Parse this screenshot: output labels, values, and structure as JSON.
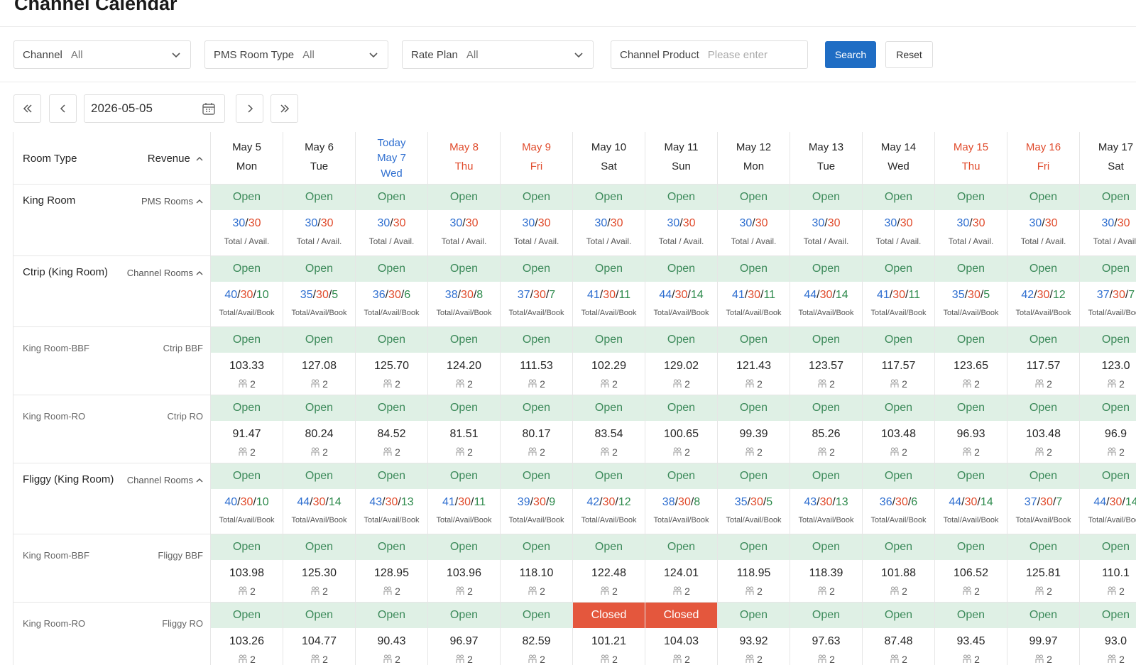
{
  "page_title": "Channel Calendar",
  "filters": {
    "channel_label": "Channel",
    "channel_value": "All",
    "room_type_label": "PMS Room Type",
    "room_type_value": "All",
    "rate_plan_label": "Rate Plan",
    "rate_plan_value": "All",
    "channel_product_label": "Channel Product",
    "channel_product_placeholder": "Please enter",
    "search_label": "Search",
    "reset_label": "Reset"
  },
  "date_nav": {
    "first": "«",
    "prev": "‹",
    "date": "2026-05-05",
    "next": "›",
    "last": "»"
  },
  "table": {
    "room_type_header": "Room Type",
    "revenue_header": "Revenue",
    "columns": [
      {
        "date": "May 5",
        "day": "Mon",
        "color": "#262626"
      },
      {
        "date": "May 6",
        "day": "Tue",
        "color": "#262626"
      },
      {
        "date": "May 7",
        "day": "Wed",
        "today": "Today",
        "color": "#2f6fd0"
      },
      {
        "date": "May 8",
        "day": "Thu",
        "color": "#e04b2c"
      },
      {
        "date": "May 9",
        "day": "Fri",
        "color": "#e04b2c"
      },
      {
        "date": "May 10",
        "day": "Sat",
        "color": "#262626"
      },
      {
        "date": "May 11",
        "day": "Sun",
        "color": "#262626"
      },
      {
        "date": "May 12",
        "day": "Mon",
        "color": "#262626"
      },
      {
        "date": "May 13",
        "day": "Tue",
        "color": "#262626"
      },
      {
        "date": "May 14",
        "day": "Wed",
        "color": "#262626"
      },
      {
        "date": "May 15",
        "day": "Thu",
        "color": "#e04b2c"
      },
      {
        "date": "May 16",
        "day": "Fri",
        "color": "#e04b2c"
      },
      {
        "date": "May 17",
        "day": "Sat",
        "color": "#262626"
      }
    ],
    "rows": [
      {
        "name": "King Room",
        "tag": "PMS Rooms",
        "kind": "pms",
        "sublabel": "Total / Avail.",
        "status": [
          "Open",
          "Open",
          "Open",
          "Open",
          "Open",
          "Open",
          "Open",
          "Open",
          "Open",
          "Open",
          "Open",
          "Open",
          "Open"
        ],
        "values": [
          [
            "30",
            "30"
          ],
          [
            "30",
            "30"
          ],
          [
            "30",
            "30"
          ],
          [
            "30",
            "30"
          ],
          [
            "30",
            "30"
          ],
          [
            "30",
            "30"
          ],
          [
            "30",
            "30"
          ],
          [
            "30",
            "30"
          ],
          [
            "30",
            "30"
          ],
          [
            "30",
            "30"
          ],
          [
            "30",
            "30"
          ],
          [
            "30",
            "30"
          ],
          [
            "30",
            "30"
          ]
        ]
      },
      {
        "name": "Ctrip (King Room)",
        "tag": "Channel Rooms",
        "kind": "channel",
        "sublabel": "Total/Avail/Book",
        "status": [
          "Open",
          "Open",
          "Open",
          "Open",
          "Open",
          "Open",
          "Open",
          "Open",
          "Open",
          "Open",
          "Open",
          "Open",
          "Open"
        ],
        "values": [
          [
            "40",
            "30",
            "10"
          ],
          [
            "35",
            "30",
            "5"
          ],
          [
            "36",
            "30",
            "6"
          ],
          [
            "38",
            "30",
            "8"
          ],
          [
            "37",
            "30",
            "7"
          ],
          [
            "41",
            "30",
            "11"
          ],
          [
            "44",
            "30",
            "14"
          ],
          [
            "41",
            "30",
            "11"
          ],
          [
            "44",
            "30",
            "14"
          ],
          [
            "41",
            "30",
            "11"
          ],
          [
            "35",
            "30",
            "5"
          ],
          [
            "42",
            "30",
            "12"
          ],
          [
            "37",
            "30",
            "7"
          ]
        ]
      },
      {
        "name": "King Room-BBF",
        "tag": "Ctrip BBF",
        "kind": "rate",
        "status": [
          "Open",
          "Open",
          "Open",
          "Open",
          "Open",
          "Open",
          "Open",
          "Open",
          "Open",
          "Open",
          "Open",
          "Open",
          "Open"
        ],
        "prices": [
          "103.33",
          "127.08",
          "125.70",
          "124.20",
          "111.53",
          "102.29",
          "129.02",
          "121.43",
          "123.57",
          "117.57",
          "123.65",
          "117.57",
          "123.0"
        ],
        "guests": "2"
      },
      {
        "name": "King Room-RO",
        "tag": "Ctrip RO",
        "kind": "rate",
        "status": [
          "Open",
          "Open",
          "Open",
          "Open",
          "Open",
          "Open",
          "Open",
          "Open",
          "Open",
          "Open",
          "Open",
          "Open",
          "Open"
        ],
        "prices": [
          "91.47",
          "80.24",
          "84.52",
          "81.51",
          "80.17",
          "83.54",
          "100.65",
          "99.39",
          "85.26",
          "103.48",
          "96.93",
          "103.48",
          "96.9"
        ],
        "guests": "2"
      },
      {
        "name": "Fliggy (King Room)",
        "tag": "Channel Rooms",
        "kind": "channel",
        "sublabel": "Total/Avail/Book",
        "status": [
          "Open",
          "Open",
          "Open",
          "Open",
          "Open",
          "Open",
          "Open",
          "Open",
          "Open",
          "Open",
          "Open",
          "Open",
          "Open"
        ],
        "values": [
          [
            "40",
            "30",
            "10"
          ],
          [
            "44",
            "30",
            "14"
          ],
          [
            "43",
            "30",
            "13"
          ],
          [
            "41",
            "30",
            "11"
          ],
          [
            "39",
            "30",
            "9"
          ],
          [
            "42",
            "30",
            "12"
          ],
          [
            "38",
            "30",
            "8"
          ],
          [
            "35",
            "30",
            "5"
          ],
          [
            "43",
            "30",
            "13"
          ],
          [
            "36",
            "30",
            "6"
          ],
          [
            "44",
            "30",
            "14"
          ],
          [
            "37",
            "30",
            "7"
          ],
          [
            "44",
            "30",
            "14"
          ]
        ]
      },
      {
        "name": "King Room-BBF",
        "tag": "Fliggy BBF",
        "kind": "rate",
        "status": [
          "Open",
          "Open",
          "Open",
          "Open",
          "Open",
          "Open",
          "Open",
          "Open",
          "Open",
          "Open",
          "Open",
          "Open",
          "Open"
        ],
        "prices": [
          "103.98",
          "125.30",
          "128.95",
          "103.96",
          "118.10",
          "122.48",
          "124.01",
          "118.95",
          "118.39",
          "101.88",
          "106.52",
          "125.81",
          "110.1"
        ],
        "guests": "2"
      },
      {
        "name": "King Room-RO",
        "tag": "Fliggy RO",
        "kind": "rate",
        "status": [
          "Open",
          "Open",
          "Open",
          "Open",
          "Open",
          "Closed",
          "Closed",
          "Open",
          "Open",
          "Open",
          "Open",
          "Open",
          "Open"
        ],
        "prices": [
          "103.26",
          "104.77",
          "90.43",
          "96.97",
          "82.59",
          "101.21",
          "104.03",
          "93.92",
          "97.63",
          "87.48",
          "93.45",
          "99.97",
          "93.0"
        ],
        "guests": "2"
      }
    ]
  }
}
